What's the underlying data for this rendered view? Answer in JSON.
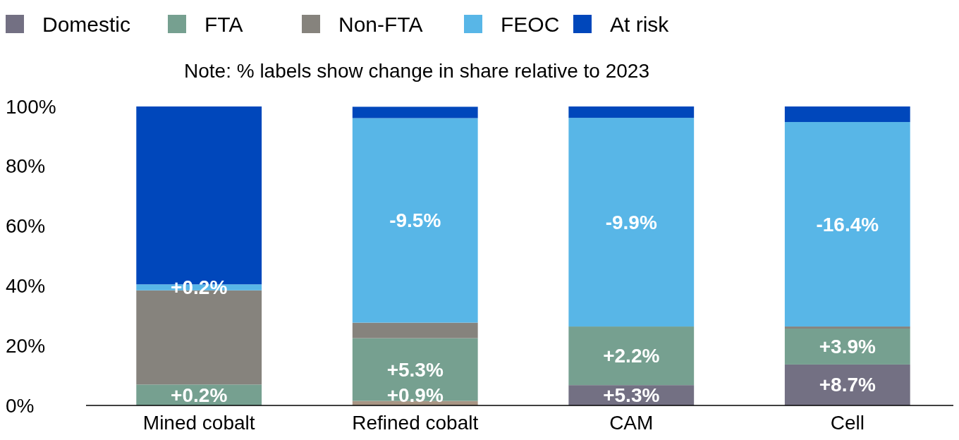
{
  "chart_data": {
    "type": "bar",
    "stacked": true,
    "annotations": [
      "Note: % labels show change in share relative to 2023",
      {
        "text": "+0.2%",
        "x": "Mined cobalt",
        "y": 7
      },
      {
        "text": "+0.2%",
        "x": "Mined cobalt",
        "y": 40.5
      },
      {
        "text": "+0.9%",
        "x": "Refined cobalt",
        "y": 1.5
      },
      {
        "text": "+5.3%",
        "x": "Refined cobalt",
        "y": 22.5
      },
      {
        "text": "+5.3%",
        "x": "CAM",
        "y": 6.8
      },
      {
        "text": "+2.2%",
        "x": "CAM",
        "y": 26.4
      },
      {
        "text": "+8.7%",
        "x": "Cell",
        "y": 13.7
      },
      {
        "text": "+3.9%",
        "x": "Cell",
        "y": 25.7
      },
      "-9.5%",
      "-9.9%",
      "-16.4%"
    ],
    "categories": [
      "Mined cobalt",
      "Refined cobalt",
      "CAM",
      "Cell"
    ],
    "series": [
      {
        "name": "Domestic",
        "color": "#737083",
        "colors": [
          "#737083",
          "#a89584",
          "#737083",
          "#737083"
        ],
        "values": [
          0,
          1.5,
          6.8,
          13.7
        ]
      },
      {
        "name": "FTA",
        "color": "#76a090",
        "values": [
          7,
          21,
          19.6,
          12
        ]
      },
      {
        "name": "Non-FTA",
        "color": "#86837d",
        "values": [
          31.5,
          5.2,
          0,
          0.7
        ]
      },
      {
        "name": "FEOC",
        "color": "#58b6e7",
        "values": [
          2,
          68.4,
          69.8,
          68.4
        ]
      },
      {
        "name": "At risk",
        "color": "#0047bb",
        "values": [
          59.5,
          3.8,
          3.8,
          5.2
        ]
      }
    ],
    "ylim": [
      0,
      100
    ],
    "yticks": [
      {
        "value": 0,
        "label": "0%"
      },
      {
        "value": 20,
        "label": "20%"
      },
      {
        "value": 40,
        "label": "40%"
      },
      {
        "value": 60,
        "label": "60%"
      },
      {
        "value": 80,
        "label": "80%"
      },
      {
        "value": 100,
        "label": "100%"
      }
    ],
    "legend": "top left"
  }
}
